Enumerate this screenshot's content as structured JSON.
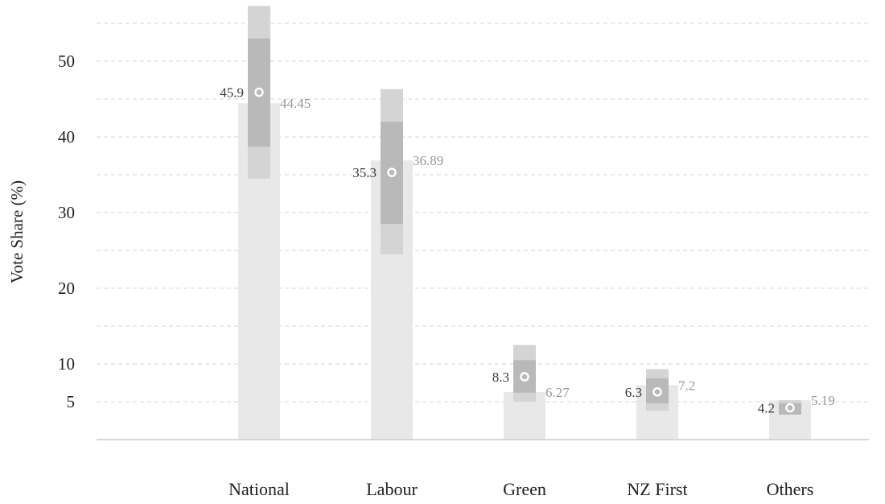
{
  "chart_data": {
    "type": "bar",
    "categories": [
      "National",
      "Labour",
      "Green",
      "NZ First",
      "Others"
    ],
    "ylabel": "Vote Share (%)",
    "xlabel": "",
    "ylim": [
      0,
      57
    ],
    "yticks": [
      5,
      10,
      20,
      30,
      40,
      50
    ],
    "grid": true,
    "series": [
      {
        "values": [
          44.45,
          36.89,
          6.27,
          7.2,
          5.19
        ]
      },
      {
        "values": [
          45.9,
          35.3,
          8.3,
          6.3,
          4.2
        ]
      }
    ],
    "ranges": [
      {
        "outer": [
          34.5,
          57.3
        ],
        "inner": [
          38.7,
          53.0
        ]
      },
      {
        "outer": [
          24.5,
          46.3
        ],
        "inner": [
          28.5,
          42.0
        ]
      },
      {
        "outer": [
          5.0,
          12.5
        ],
        "inner": [
          6.2,
          10.5
        ]
      },
      {
        "outer": [
          3.8,
          9.3
        ],
        "inner": [
          4.8,
          8.1
        ]
      },
      {
        "outer": [
          3.3,
          5.2
        ],
        "inner": [
          3.3,
          4.8
        ]
      }
    ],
    "colors": {
      "bar": "#e8e8e8",
      "range_outer": "#d4d4d4",
      "range_inner": "#b9b9b9",
      "marker": "#ffffff",
      "label_current": "#3a3a3a",
      "label_previous": "#999999"
    }
  }
}
